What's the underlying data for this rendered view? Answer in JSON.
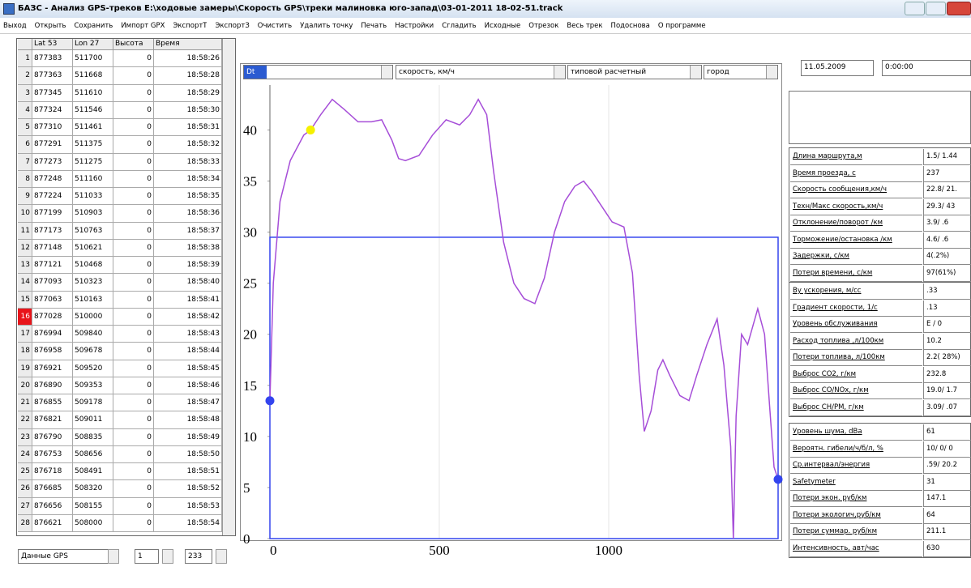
{
  "window": {
    "title": "БАЗС - Анализ GPS-треков   E:\\ходовые замеры\\Скорость GPS\\треки малиновка юго-запад\\03-01-2011 18-02-51.track"
  },
  "menu": [
    "Выход",
    "Открыть",
    "Сохранить",
    "Импорт GPX",
    "ЭкспортТ",
    "ЭкспортЗ",
    "Очистить",
    "Удалить точку",
    "Печать",
    "Настройки",
    "Сгладить",
    "Исходные",
    "Отрезок",
    "Весь трек",
    "Подоснова",
    "О программе"
  ],
  "table": {
    "columns": [
      "Lat 53",
      "Lon 27",
      "Высота",
      "Время"
    ],
    "highlight_row": 16,
    "rows": [
      [
        1,
        "877383",
        "511700",
        0,
        "18:58:26"
      ],
      [
        2,
        "877363",
        "511668",
        0,
        "18:58:28"
      ],
      [
        3,
        "877345",
        "511610",
        0,
        "18:58:29"
      ],
      [
        4,
        "877324",
        "511546",
        0,
        "18:58:30"
      ],
      [
        5,
        "877310",
        "511461",
        0,
        "18:58:31"
      ],
      [
        6,
        "877291",
        "511375",
        0,
        "18:58:32"
      ],
      [
        7,
        "877273",
        "511275",
        0,
        "18:58:33"
      ],
      [
        8,
        "877248",
        "511160",
        0,
        "18:58:34"
      ],
      [
        9,
        "877224",
        "511033",
        0,
        "18:58:35"
      ],
      [
        10,
        "877199",
        "510903",
        0,
        "18:58:36"
      ],
      [
        11,
        "877173",
        "510763",
        0,
        "18:58:37"
      ],
      [
        12,
        "877148",
        "510621",
        0,
        "18:58:38"
      ],
      [
        13,
        "877121",
        "510468",
        0,
        "18:58:39"
      ],
      [
        14,
        "877093",
        "510323",
        0,
        "18:58:40"
      ],
      [
        15,
        "877063",
        "510163",
        0,
        "18:58:41"
      ],
      [
        16,
        "877028",
        "510000",
        0,
        "18:58:42"
      ],
      [
        17,
        "876994",
        "509840",
        0,
        "18:58:43"
      ],
      [
        18,
        "876958",
        "509678",
        0,
        "18:58:44"
      ],
      [
        19,
        "876921",
        "509520",
        0,
        "18:58:45"
      ],
      [
        20,
        "876890",
        "509353",
        0,
        "18:58:46"
      ],
      [
        21,
        "876855",
        "509178",
        0,
        "18:58:47"
      ],
      [
        22,
        "876821",
        "509011",
        0,
        "18:58:48"
      ],
      [
        23,
        "876790",
        "508835",
        0,
        "18:58:49"
      ],
      [
        24,
        "876753",
        "508656",
        0,
        "18:58:50"
      ],
      [
        25,
        "876718",
        "508491",
        0,
        "18:58:51"
      ],
      [
        26,
        "876685",
        "508320",
        0,
        "18:58:52"
      ],
      [
        27,
        "876656",
        "508155",
        0,
        "18:58:53"
      ],
      [
        28,
        "876621",
        "508000",
        0,
        "18:58:54"
      ]
    ]
  },
  "bottom_left": {
    "source": "Данные GPS",
    "from": "1",
    "to": "233"
  },
  "selectors": [
    "Dt",
    "скорость, км/ч",
    "типовой расчетный",
    "город"
  ],
  "date": "11.05.2009",
  "time": "0:00:00",
  "chart": {
    "type": "line",
    "color": "#a64ed8",
    "x": [
      0,
      10,
      30,
      60,
      100,
      120,
      150,
      184,
      220,
      260,
      300,
      330,
      360,
      380,
      400,
      440,
      480,
      520,
      560,
      590,
      615,
      640,
      660,
      690,
      720,
      750,
      782,
      810,
      840,
      870,
      900,
      926,
      950,
      980,
      1010,
      1045,
      1070,
      1090,
      1105,
      1125,
      1145,
      1160,
      1180,
      1210,
      1237,
      1260,
      1290,
      1320,
      1340,
      1360,
      1368,
      1376,
      1392,
      1410,
      1440,
      1460,
      1475,
      1488,
      1500
    ],
    "values": [
      13.5,
      25,
      33,
      37,
      39.5,
      40,
      41.5,
      43,
      42,
      40.8,
      40.8,
      41,
      39,
      37.2,
      37,
      37.5,
      39.5,
      41,
      40.5,
      41.5,
      43,
      41.5,
      36,
      29,
      25,
      23.5,
      23,
      25.5,
      30,
      33,
      34.5,
      35,
      34,
      32.5,
      31,
      30.5,
      26,
      16,
      10.5,
      12.5,
      16.5,
      17.5,
      16,
      14,
      13.5,
      16,
      19,
      21.5,
      17,
      9,
      0,
      12,
      20,
      19,
      22.5,
      20,
      13,
      7,
      5.8
    ],
    "xlim": [
      0,
      1500
    ],
    "ylim": [
      0,
      44.4
    ],
    "xticks": [
      0,
      500,
      1000
    ],
    "yticks": [
      0,
      5,
      10,
      15,
      20,
      25,
      30,
      35,
      40
    ],
    "grid": true,
    "selection": {
      "x": [
        0,
        1500
      ],
      "top": 29.5,
      "color": "#3344ee"
    },
    "cursor": {
      "x": 120,
      "y": 40,
      "color": "#f5f000"
    }
  },
  "stats": [
    [
      [
        "Длина маршрута,м",
        "1.5/ 1.44"
      ],
      [
        "Время проезда, с",
        "237"
      ],
      [
        "Скорость сообщения,км/ч",
        "22.8/ 21."
      ],
      [
        "Техн/Макс скорость,км/ч",
        "29.3/ 43"
      ],
      [
        "Отклонение/поворот /км",
        "3.9/ .6"
      ],
      [
        "Торможение/остановка /км",
        "4.6/ .6"
      ],
      [
        "Задержки, с/км",
        "4(.2%)"
      ],
      [
        "Потери времени, с/км",
        "97(61%)"
      ]
    ],
    [
      [
        "Ву ускорения, м/сс",
        ".33"
      ],
      [
        "Градиент скорости, 1/с",
        ".13"
      ],
      [
        "Уровень обслуживания",
        "E / 0"
      ],
      [
        "Расход топлива ,л/100км",
        "10.2"
      ],
      [
        "Потери топлива, л/100км",
        "2.2( 28%)"
      ],
      [
        "Выброс СО2, г/км",
        "232.8"
      ],
      [
        "Выброс СО/NOx, г/км",
        "19.0/ 1.7"
      ],
      [
        "Выброс СН/РМ, г/км",
        "3.09/ .07"
      ]
    ],
    [
      [
        "Уровень шума, dBa",
        "61"
      ],
      [
        "Вероятн. гибели/ч/б/л, %",
        "10/ 0/ 0"
      ],
      [
        "Ср.интервал/энергия",
        ".59/ 20.2"
      ],
      [
        "Safetymeter",
        "31"
      ],
      [
        "Потери экон. руб/км",
        "147.1"
      ],
      [
        "Потери экологич,руб/км",
        "64"
      ],
      [
        "Потери суммар. руб/км",
        "211.1"
      ],
      [
        "Интенсивность, авт/час",
        "630"
      ]
    ]
  ]
}
